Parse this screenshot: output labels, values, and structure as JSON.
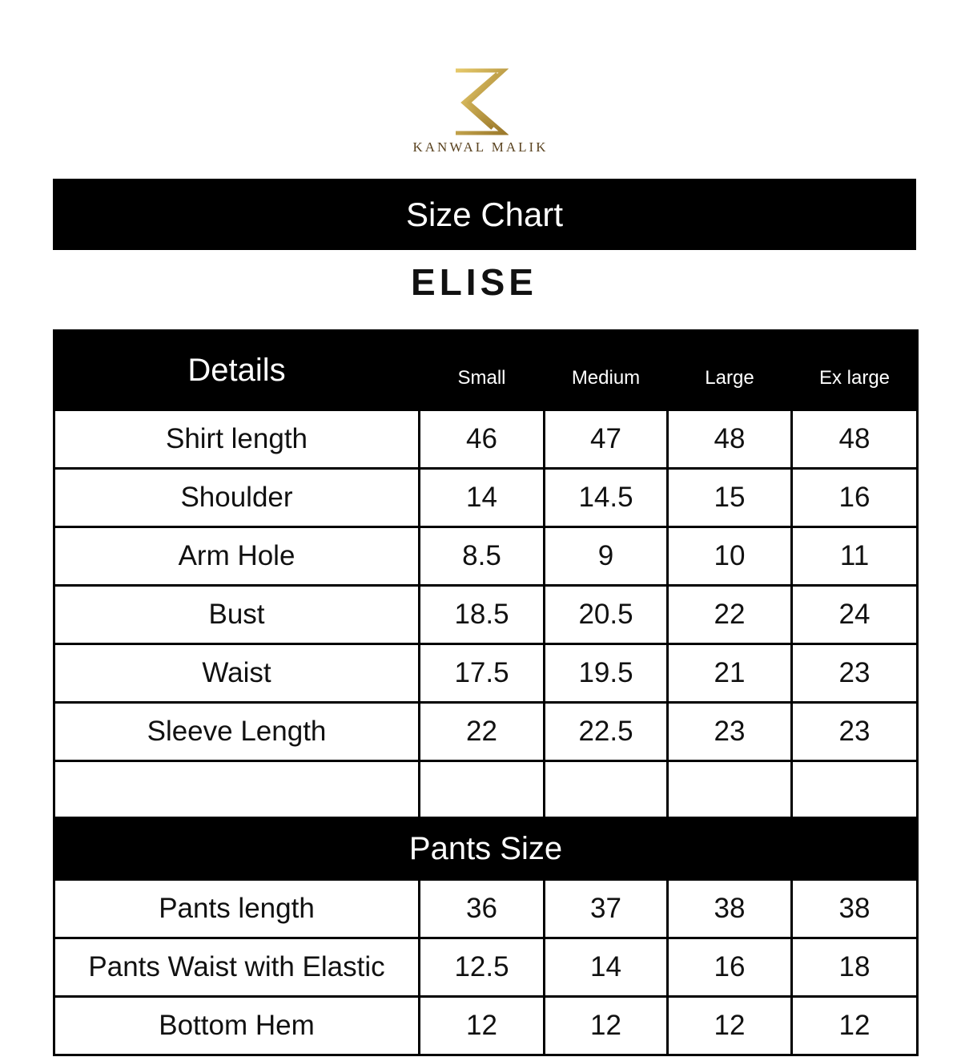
{
  "brand": {
    "name": "KANWAL MALIK",
    "logo_color": "#c9a64a"
  },
  "title": "Size Chart",
  "product": "ELISE",
  "columns": [
    "Details",
    "Small",
    "Medium",
    "Large",
    "Ex large"
  ],
  "shirt_rows": [
    {
      "label": "Shirt length",
      "values": [
        "46",
        "47",
        "48",
        "48"
      ]
    },
    {
      "label": "Shoulder",
      "values": [
        "14",
        "14.5",
        "15",
        "16"
      ]
    },
    {
      "label": "Arm Hole",
      "values": [
        "8.5",
        "9",
        "10",
        "11"
      ]
    },
    {
      "label": "Bust",
      "values": [
        "18.5",
        "20.5",
        "22",
        "24"
      ]
    },
    {
      "label": "Waist",
      "values": [
        "17.5",
        "19.5",
        "21",
        "23"
      ]
    },
    {
      "label": "Sleeve Length",
      "values": [
        "22",
        "22.5",
        "23",
        "23"
      ]
    }
  ],
  "pants_section": "Pants Size",
  "pants_rows": [
    {
      "label": "Pants length",
      "values": [
        "36",
        "37",
        "38",
        "38"
      ]
    },
    {
      "label": "Pants Waist with Elastic",
      "values": [
        "12.5",
        "14",
        "16",
        "18"
      ]
    },
    {
      "label": "Bottom Hem",
      "values": [
        "12",
        "12",
        "12",
        "12"
      ]
    }
  ]
}
